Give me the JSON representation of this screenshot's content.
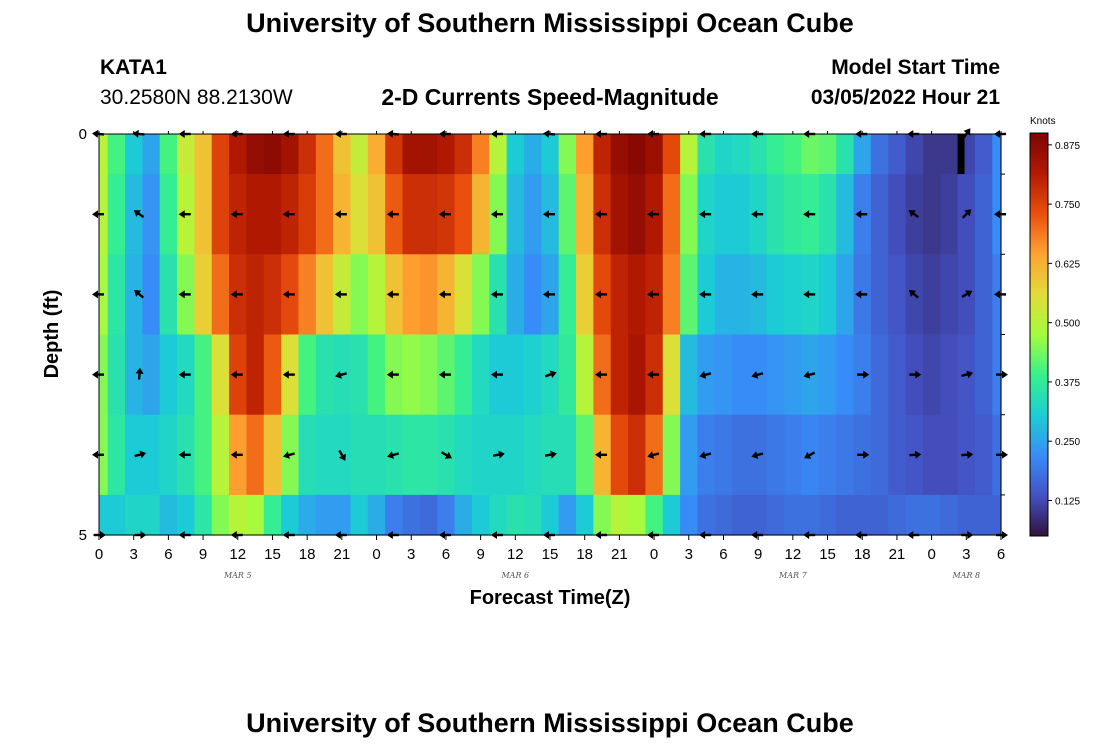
{
  "header": {
    "title": "University of Southern Mississippi Ocean Cube",
    "station_id": "KATA1",
    "station_coords": "30.2580N  88.2130W",
    "chart_title": "2-D Currents Speed-Magnitude",
    "start_label": "Model Start Time",
    "start_value": "03/05/2022 Hour 21"
  },
  "footer": {
    "title": "University of Southern Mississippi Ocean Cube"
  },
  "chart_data": {
    "type": "heatmap",
    "title": "2-D Currents Speed-Magnitude",
    "xlabel": "Forecast Time(Z)",
    "ylabel": "Depth (ft)",
    "x_start_hour": 0,
    "x_end_hour": 78,
    "x_ticks": [
      {
        "h": 0,
        "label": "0"
      },
      {
        "h": 3,
        "label": "3"
      },
      {
        "h": 6,
        "label": "6"
      },
      {
        "h": 9,
        "label": "9"
      },
      {
        "h": 12,
        "label": "12"
      },
      {
        "h": 15,
        "label": "15"
      },
      {
        "h": 18,
        "label": "18"
      },
      {
        "h": 21,
        "label": "21"
      },
      {
        "h": 24,
        "label": "0"
      },
      {
        "h": 27,
        "label": "3"
      },
      {
        "h": 30,
        "label": "6"
      },
      {
        "h": 33,
        "label": "9"
      },
      {
        "h": 36,
        "label": "12"
      },
      {
        "h": 39,
        "label": "15"
      },
      {
        "h": 42,
        "label": "18"
      },
      {
        "h": 45,
        "label": "21"
      },
      {
        "h": 48,
        "label": "0"
      },
      {
        "h": 51,
        "label": "3"
      },
      {
        "h": 54,
        "label": "6"
      },
      {
        "h": 57,
        "label": "9"
      },
      {
        "h": 60,
        "label": "12"
      },
      {
        "h": 63,
        "label": "15"
      },
      {
        "h": 66,
        "label": "18"
      },
      {
        "h": 69,
        "label": "21"
      },
      {
        "h": 72,
        "label": "0"
      },
      {
        "h": 75,
        "label": "3"
      },
      {
        "h": 78,
        "label": "6"
      }
    ],
    "day_labels": [
      {
        "h": 12,
        "label": "MAR 5"
      },
      {
        "h": 36,
        "label": "MAR 6"
      },
      {
        "h": 60,
        "label": "MAR 7"
      },
      {
        "h": 75,
        "label": "MAR 8"
      }
    ],
    "y_range": [
      0,
      5
    ],
    "y_ticks": [
      {
        "v": 0,
        "label": "0"
      },
      {
        "v": 5,
        "label": "5"
      }
    ],
    "layer_edges_ft": [
      0,
      0.5,
      1.5,
      2.5,
      3.5,
      4.5,
      5
    ],
    "anchor_hours": [
      0,
      1.5,
      3,
      4.5,
      6,
      7.5,
      9,
      10.5,
      12,
      13.5,
      15,
      16.5,
      18,
      19.5,
      21,
      22.5,
      24,
      25.5,
      27,
      28.5,
      30,
      31.5,
      33,
      34.5,
      36,
      37.5,
      39,
      40.5,
      42,
      43.5,
      45,
      46.5,
      48,
      49.5,
      51,
      52.5,
      54,
      55.5,
      57,
      58.5,
      60,
      61.5,
      63,
      64.5,
      66,
      67.5,
      69,
      70.5,
      72,
      73.5,
      75,
      76.5,
      78
    ],
    "speed_knots": [
      [
        0.5,
        0.4,
        0.3,
        0.25,
        0.4,
        0.52,
        0.6,
        0.75,
        0.82,
        0.86,
        0.87,
        0.84,
        0.78,
        0.7,
        0.6,
        0.52,
        0.63,
        0.77,
        0.84,
        0.84,
        0.82,
        0.78,
        0.68,
        0.5,
        0.3,
        0.26,
        0.3,
        0.45,
        0.65,
        0.8,
        0.86,
        0.88,
        0.85,
        0.74,
        0.5,
        0.35,
        0.32,
        0.33,
        0.35,
        0.38,
        0.4,
        0.43,
        0.42,
        0.35,
        0.25,
        0.18,
        0.15,
        0.12,
        0.1,
        0.1,
        0.12,
        0.15,
        0.22
      ],
      [
        0.5,
        0.38,
        0.28,
        0.23,
        0.38,
        0.5,
        0.6,
        0.75,
        0.8,
        0.82,
        0.82,
        0.8,
        0.76,
        0.7,
        0.62,
        0.55,
        0.6,
        0.72,
        0.78,
        0.78,
        0.77,
        0.73,
        0.62,
        0.45,
        0.28,
        0.24,
        0.28,
        0.42,
        0.62,
        0.78,
        0.84,
        0.86,
        0.82,
        0.7,
        0.45,
        0.32,
        0.3,
        0.3,
        0.32,
        0.35,
        0.37,
        0.38,
        0.35,
        0.28,
        0.2,
        0.16,
        0.13,
        0.11,
        0.1,
        0.11,
        0.13,
        0.16,
        0.22
      ],
      [
        0.48,
        0.36,
        0.27,
        0.22,
        0.35,
        0.45,
        0.58,
        0.7,
        0.78,
        0.8,
        0.78,
        0.74,
        0.68,
        0.6,
        0.52,
        0.45,
        0.5,
        0.6,
        0.65,
        0.66,
        0.62,
        0.55,
        0.45,
        0.35,
        0.26,
        0.22,
        0.25,
        0.38,
        0.58,
        0.74,
        0.8,
        0.82,
        0.8,
        0.68,
        0.42,
        0.3,
        0.27,
        0.27,
        0.28,
        0.3,
        0.31,
        0.32,
        0.3,
        0.25,
        0.19,
        0.16,
        0.14,
        0.12,
        0.11,
        0.12,
        0.13,
        0.16,
        0.2
      ],
      [
        0.45,
        0.35,
        0.27,
        0.25,
        0.3,
        0.33,
        0.4,
        0.55,
        0.75,
        0.8,
        0.72,
        0.55,
        0.4,
        0.35,
        0.34,
        0.35,
        0.4,
        0.45,
        0.46,
        0.45,
        0.42,
        0.38,
        0.33,
        0.3,
        0.3,
        0.31,
        0.33,
        0.37,
        0.5,
        0.7,
        0.8,
        0.83,
        0.78,
        0.55,
        0.28,
        0.24,
        0.23,
        0.22,
        0.22,
        0.23,
        0.24,
        0.25,
        0.24,
        0.22,
        0.2,
        0.17,
        0.15,
        0.13,
        0.12,
        0.13,
        0.14,
        0.16,
        0.2
      ],
      [
        0.45,
        0.36,
        0.3,
        0.3,
        0.32,
        0.35,
        0.4,
        0.5,
        0.65,
        0.7,
        0.6,
        0.45,
        0.34,
        0.33,
        0.33,
        0.34,
        0.34,
        0.35,
        0.36,
        0.36,
        0.35,
        0.33,
        0.32,
        0.32,
        0.32,
        0.33,
        0.34,
        0.34,
        0.42,
        0.62,
        0.74,
        0.78,
        0.7,
        0.45,
        0.24,
        0.2,
        0.19,
        0.18,
        0.18,
        0.19,
        0.2,
        0.21,
        0.2,
        0.19,
        0.18,
        0.17,
        0.15,
        0.14,
        0.13,
        0.13,
        0.14,
        0.15,
        0.18
      ],
      [
        0.3,
        0.3,
        0.32,
        0.32,
        0.28,
        0.3,
        0.36,
        0.45,
        0.5,
        0.48,
        0.38,
        0.3,
        0.26,
        0.24,
        0.24,
        0.3,
        0.26,
        0.2,
        0.18,
        0.17,
        0.2,
        0.26,
        0.3,
        0.33,
        0.35,
        0.34,
        0.3,
        0.24,
        0.3,
        0.45,
        0.5,
        0.48,
        0.4,
        0.3,
        0.22,
        0.18,
        0.17,
        0.16,
        0.16,
        0.17,
        0.18,
        0.18,
        0.17,
        0.16,
        0.16,
        0.16,
        0.17,
        0.18,
        0.18,
        0.17,
        0.16,
        0.16,
        0.16
      ]
    ],
    "colorbar": {
      "unit": "Knots",
      "min": 0.05,
      "max": 0.9,
      "ticks": [
        0.125,
        0.25,
        0.375,
        0.5,
        0.625,
        0.75,
        0.875
      ],
      "tick_labels": [
        "0.125",
        "0.250",
        "0.375",
        "0.500",
        "0.625",
        "0.750",
        "0.875"
      ]
    },
    "arrow_depths_ft": [
      0,
      1,
      2,
      3,
      4,
      5
    ],
    "arrow_hours": [
      0,
      3.5,
      7.5,
      12,
      16.5,
      21,
      25.5,
      30,
      34.5,
      39,
      43.5,
      48,
      52.5,
      57,
      61.5,
      66,
      70.5,
      75,
      78
    ],
    "arrow_dirs_deg": [
      [
        175,
        175,
        180,
        180,
        180,
        180,
        175,
        180,
        180,
        175,
        180,
        180,
        180,
        180,
        180,
        180,
        180,
        55,
        180
      ],
      [
        180,
        145,
        180,
        180,
        180,
        180,
        180,
        180,
        180,
        180,
        180,
        180,
        180,
        180,
        180,
        180,
        145,
        45,
        180
      ],
      [
        180,
        140,
        180,
        180,
        180,
        180,
        180,
        180,
        180,
        180,
        180,
        180,
        180,
        180,
        180,
        180,
        140,
        30,
        180
      ],
      [
        180,
        85,
        180,
        180,
        180,
        195,
        180,
        180,
        180,
        20,
        180,
        180,
        195,
        195,
        195,
        0,
        0,
        15,
        0
      ],
      [
        180,
        15,
        180,
        180,
        195,
        300,
        195,
        330,
        10,
        10,
        180,
        195,
        195,
        195,
        210,
        0,
        5,
        5,
        0
      ],
      [
        0,
        0,
        180,
        180,
        180,
        180,
        180,
        180,
        180,
        180,
        180,
        180,
        180,
        180,
        180,
        180,
        180,
        0,
        0
      ]
    ],
    "black_marker": {
      "h": 74.5,
      "depth_from": 0,
      "depth_to": 0.5
    }
  }
}
